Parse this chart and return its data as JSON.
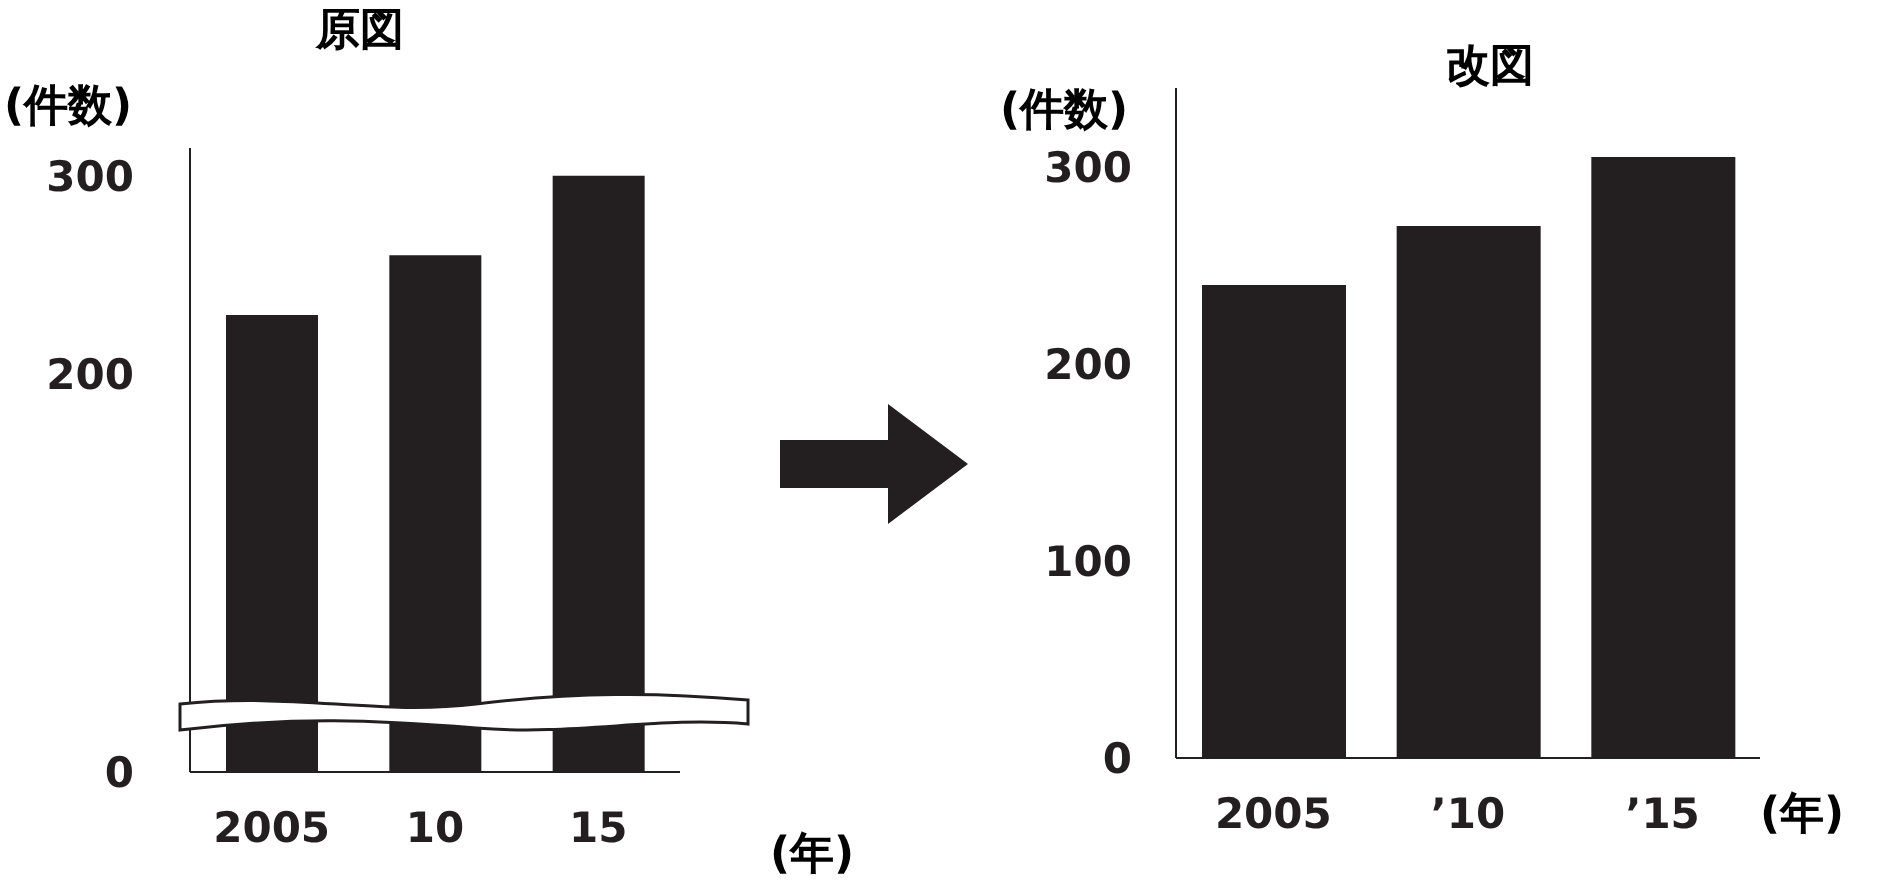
{
  "chart_data": [
    {
      "type": "bar",
      "title": "原図",
      "ylabel": "(件数)",
      "xlabel": "(年)",
      "categories": [
        "2005",
        "10",
        "15"
      ],
      "values": [
        230,
        260,
        300
      ],
      "color": "#231f20",
      "ylim": [
        0,
        314
      ],
      "yticks": [
        0,
        200,
        300
      ],
      "grid": false
    },
    {
      "type": "bar",
      "title": "改図",
      "ylabel": "(件数)",
      "xlabel": "(年)",
      "categories": [
        "2005",
        "’10",
        "’15"
      ],
      "values": [
        240,
        270,
        305
      ],
      "color": "#231f20",
      "ylim": [
        0,
        340
      ],
      "yticks": [
        0,
        100,
        200,
        300
      ],
      "grid": false
    }
  ]
}
